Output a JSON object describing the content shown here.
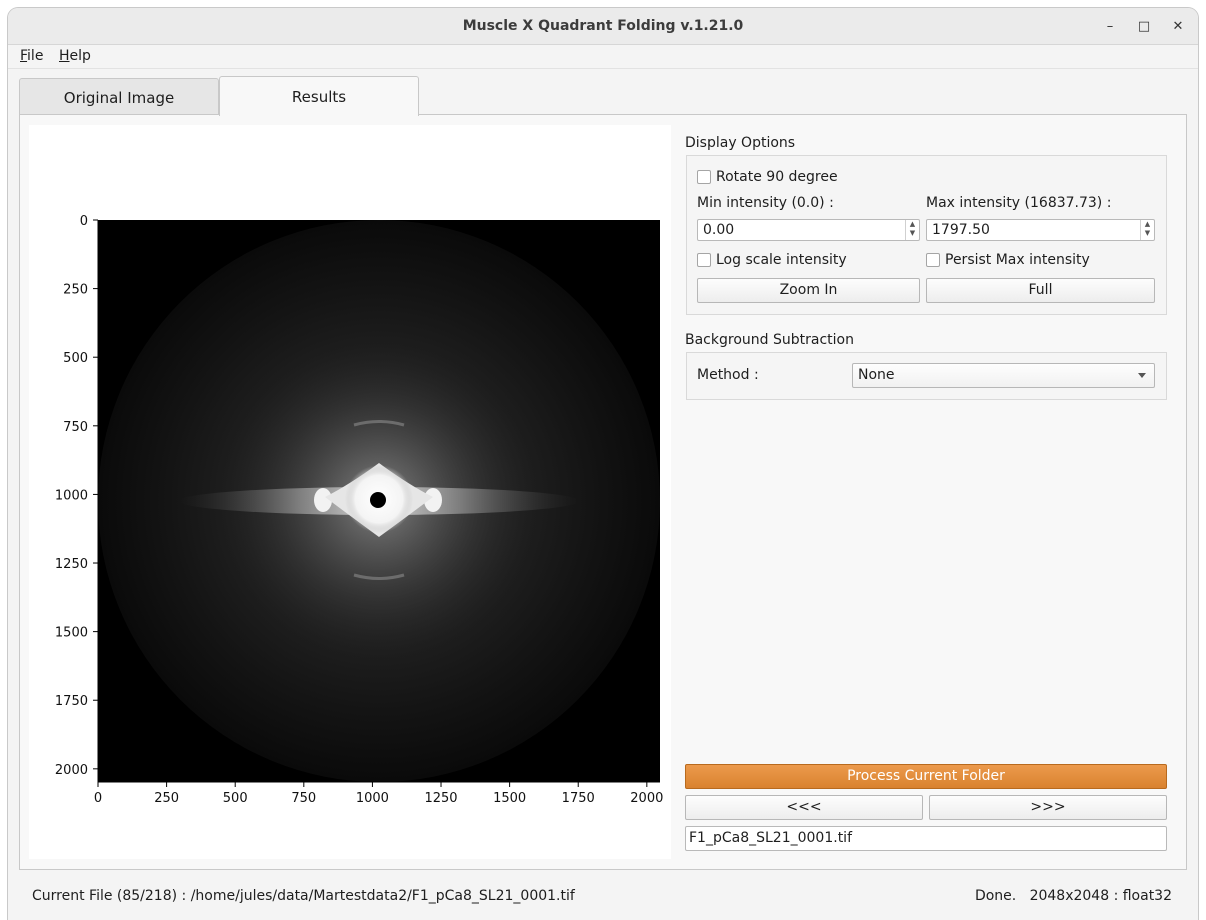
{
  "window": {
    "title": "Muscle X Quadrant Folding v.1.21.0",
    "minimize_icon": "minimize-icon",
    "maximize_icon": "maximize-icon",
    "close_icon": "close-icon",
    "minimize_glyph": "–",
    "maximize_glyph": "□",
    "close_glyph": "✕"
  },
  "menu": {
    "file_mnemonic": "F",
    "file_rest": "ile",
    "help_mnemonic": "H",
    "help_rest": "elp"
  },
  "tabs": [
    {
      "label": "Original Image",
      "active": false
    },
    {
      "label": "Results",
      "active": true
    }
  ],
  "chart_data": {
    "type": "heatmap",
    "description_source": "diffraction image display",
    "x_ticks": [
      "0",
      "250",
      "500",
      "750",
      "1000",
      "1250",
      "1500",
      "1750",
      "2000"
    ],
    "y_ticks": [
      "0",
      "250",
      "500",
      "750",
      "1000",
      "1250",
      "1500",
      "1750",
      "2000"
    ],
    "xlim": [
      0,
      2048
    ],
    "ylim": [
      2048,
      0
    ],
    "colormap": "gray"
  },
  "display_options": {
    "title": "Display Options",
    "rotate_label": "Rotate 90 degree",
    "rotate_checked": false,
    "min_label": "Min intensity (0.0) :",
    "min_value": "0.00",
    "max_label": "Max intensity (16837.73) :",
    "max_value": "1797.50",
    "log_label": "Log scale intensity",
    "log_checked": false,
    "persist_label": "Persist Max intensity",
    "persist_checked": false,
    "zoom_in_label": "Zoom In",
    "full_label": "Full"
  },
  "background": {
    "title": "Background Subtraction",
    "method_label": "Method :",
    "method_value": "None"
  },
  "actions": {
    "process_label": "Process Current Folder",
    "process_color": "#e08a38",
    "prev_label": "<<<",
    "next_label": ">>>",
    "filename": "F1_pCa8_SL21_0001.tif"
  },
  "status": {
    "left": "Current File (85/218) : /home/jules/data/Martestdata2/F1_pCa8_SL21_0001.tif",
    "right": "Done.   2048x2048 : float32"
  }
}
